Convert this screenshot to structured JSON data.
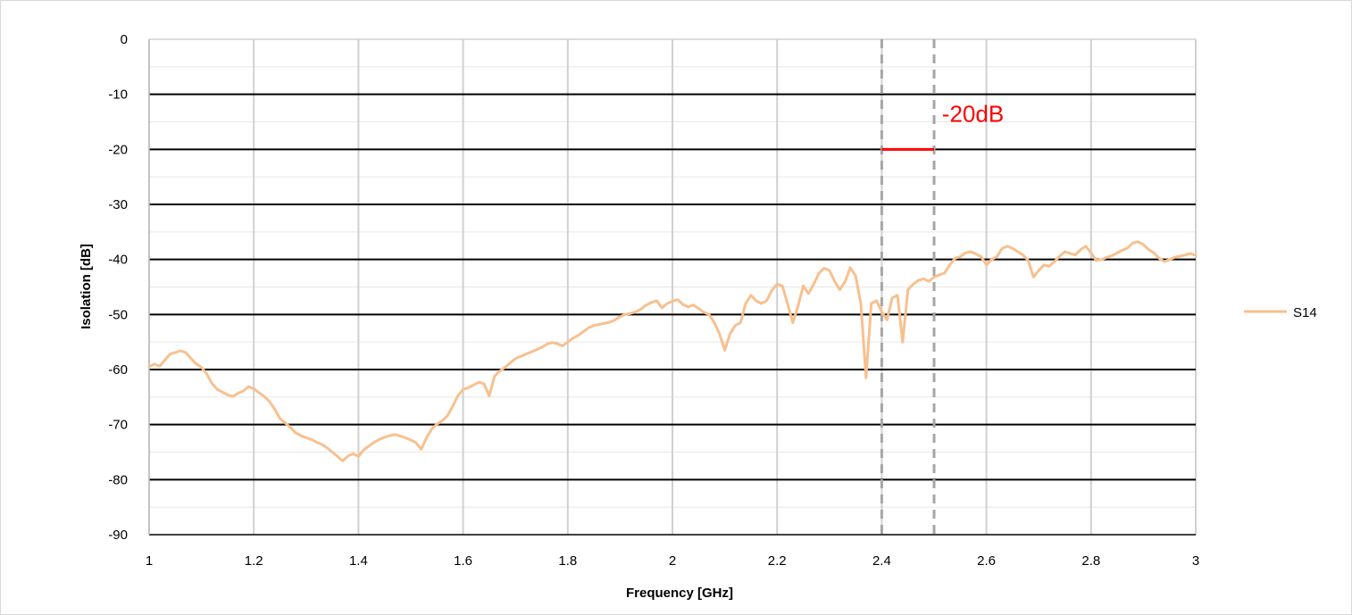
{
  "chart_data": {
    "type": "line",
    "title": "",
    "xlabel": "Frequency [GHz]",
    "ylabel": "Isolation [dB]",
    "xlim": [
      1,
      3
    ],
    "ylim": [
      -90,
      0
    ],
    "x_ticks": [
      1,
      1.2,
      1.4,
      1.6,
      1.8,
      2,
      2.2,
      2.4,
      2.6,
      2.8,
      3
    ],
    "x_tick_labels": [
      "1",
      "1.2",
      "1.4",
      "1.6",
      "1.8",
      "2",
      "2.2",
      "2.4",
      "2.6",
      "2.8",
      "3"
    ],
    "y_ticks": [
      0,
      -10,
      -20,
      -30,
      -40,
      -50,
      -60,
      -70,
      -80,
      -90
    ],
    "y_tick_labels": [
      "0",
      "-10",
      "-20",
      "-30",
      "-40",
      "-50",
      "-60",
      "-70",
      "-80",
      "-90"
    ],
    "grid": true,
    "legend_position": "right",
    "series": [
      {
        "name": "S14",
        "color": "#f8c08f",
        "x": [
          1.0,
          1.01,
          1.02,
          1.03,
          1.04,
          1.05,
          1.06,
          1.07,
          1.08,
          1.09,
          1.1,
          1.11,
          1.12,
          1.13,
          1.14,
          1.15,
          1.16,
          1.17,
          1.18,
          1.19,
          1.2,
          1.21,
          1.22,
          1.23,
          1.24,
          1.25,
          1.26,
          1.27,
          1.28,
          1.29,
          1.3,
          1.31,
          1.32,
          1.33,
          1.34,
          1.35,
          1.36,
          1.37,
          1.38,
          1.39,
          1.4,
          1.41,
          1.42,
          1.43,
          1.44,
          1.45,
          1.46,
          1.47,
          1.48,
          1.49,
          1.5,
          1.51,
          1.52,
          1.53,
          1.54,
          1.55,
          1.56,
          1.57,
          1.58,
          1.59,
          1.6,
          1.61,
          1.62,
          1.63,
          1.64,
          1.65,
          1.66,
          1.67,
          1.68,
          1.69,
          1.7,
          1.71,
          1.72,
          1.73,
          1.74,
          1.75,
          1.76,
          1.77,
          1.78,
          1.79,
          1.8,
          1.81,
          1.82,
          1.83,
          1.84,
          1.85,
          1.86,
          1.87,
          1.88,
          1.89,
          1.9,
          1.91,
          1.92,
          1.93,
          1.94,
          1.95,
          1.96,
          1.97,
          1.98,
          1.99,
          2.0,
          2.01,
          2.02,
          2.03,
          2.04,
          2.05,
          2.06,
          2.07,
          2.08,
          2.09,
          2.1,
          2.11,
          2.12,
          2.13,
          2.14,
          2.15,
          2.16,
          2.17,
          2.18,
          2.19,
          2.2,
          2.21,
          2.22,
          2.23,
          2.24,
          2.25,
          2.26,
          2.27,
          2.28,
          2.29,
          2.3,
          2.31,
          2.32,
          2.33,
          2.34,
          2.35,
          2.36,
          2.37,
          2.38,
          2.39,
          2.4,
          2.41,
          2.42,
          2.43,
          2.44,
          2.45,
          2.46,
          2.47,
          2.48,
          2.49,
          2.5,
          2.51,
          2.52,
          2.53,
          2.54,
          2.55,
          2.56,
          2.57,
          2.58,
          2.59,
          2.6,
          2.61,
          2.62,
          2.63,
          2.64,
          2.65,
          2.66,
          2.67,
          2.68,
          2.69,
          2.7,
          2.71,
          2.72,
          2.73,
          2.74,
          2.75,
          2.76,
          2.77,
          2.78,
          2.79,
          2.8,
          2.81,
          2.82,
          2.83,
          2.84,
          2.85,
          2.86,
          2.87,
          2.88,
          2.89,
          2.9,
          2.91,
          2.92,
          2.93,
          2.94,
          2.95,
          2.96,
          2.97,
          2.98,
          2.99,
          3.0
        ],
        "y": [
          -59.5,
          -59.0,
          -59.4,
          -58.3,
          -57.2,
          -56.9,
          -56.6,
          -56.9,
          -58.0,
          -59.0,
          -59.6,
          -60.8,
          -62.5,
          -63.6,
          -64.1,
          -64.6,
          -64.9,
          -64.3,
          -63.9,
          -63.1,
          -63.5,
          -64.2,
          -64.9,
          -65.8,
          -67.2,
          -68.9,
          -69.7,
          -70.5,
          -71.5,
          -72.0,
          -72.4,
          -72.7,
          -73.2,
          -73.6,
          -74.2,
          -75.0,
          -75.8,
          -76.6,
          -75.7,
          -75.3,
          -75.8,
          -74.6,
          -73.9,
          -73.2,
          -72.7,
          -72.3,
          -72.0,
          -71.8,
          -72.1,
          -72.4,
          -72.8,
          -73.3,
          -74.5,
          -72.4,
          -70.8,
          -69.9,
          -69.3,
          -68.4,
          -66.7,
          -64.8,
          -63.6,
          -63.3,
          -62.8,
          -62.3,
          -62.6,
          -64.8,
          -61.2,
          -60.3,
          -59.6,
          -58.8,
          -58.0,
          -57.6,
          -57.2,
          -56.8,
          -56.4,
          -56.0,
          -55.4,
          -55.1,
          -55.3,
          -55.7,
          -55.0,
          -54.3,
          -53.8,
          -53.1,
          -52.4,
          -52.0,
          -51.8,
          -51.6,
          -51.4,
          -51.0,
          -50.4,
          -50.0,
          -49.8,
          -49.5,
          -49.0,
          -48.3,
          -47.8,
          -47.5,
          -48.8,
          -48.0,
          -47.6,
          -47.3,
          -48.2,
          -48.6,
          -48.3,
          -48.9,
          -49.6,
          -50.0,
          -51.5,
          -53.5,
          -56.5,
          -53.5,
          -52.0,
          -51.5,
          -48.0,
          -46.5,
          -47.5,
          -48.0,
          -47.5,
          -45.6,
          -44.5,
          -44.8,
          -48.0,
          -51.5,
          -48.5,
          -44.8,
          -46.2,
          -44.5,
          -42.5,
          -41.6,
          -42.0,
          -44.0,
          -45.5,
          -44.0,
          -41.5,
          -43.0,
          -48.0,
          -61.5,
          -48.0,
          -47.5,
          -49.5,
          -51.0,
          -47.0,
          -46.5,
          -55.0,
          -45.5,
          -44.5,
          -43.8,
          -43.5,
          -44.0,
          -43.2,
          -42.8,
          -42.5,
          -41.0,
          -39.8,
          -39.5,
          -38.8,
          -38.6,
          -39.0,
          -39.5,
          -41.0,
          -40.0,
          -39.5,
          -38.0,
          -37.6,
          -38.0,
          -38.6,
          -39.2,
          -40.2,
          -43.2,
          -42.0,
          -41.0,
          -41.2,
          -40.4,
          -39.4,
          -38.6,
          -38.9,
          -39.2,
          -38.2,
          -37.6,
          -38.8,
          -40.2,
          -40.0,
          -39.6,
          -39.3,
          -38.8,
          -38.3,
          -37.9,
          -37.0,
          -36.8,
          -37.3,
          -38.2,
          -38.8,
          -39.8,
          -40.4,
          -40.0,
          -39.6,
          -39.4,
          -39.2,
          -38.9,
          -39.3
        ]
      }
    ],
    "annotations": [
      {
        "type": "vline",
        "x": 2.4,
        "color": "#a6a6a6",
        "style": "dashed"
      },
      {
        "type": "vline",
        "x": 2.5,
        "color": "#a6a6a6",
        "style": "dashed"
      },
      {
        "type": "hsegment",
        "x0": 2.4,
        "x1": 2.5,
        "y": -20,
        "color": "#ff0000"
      },
      {
        "type": "text",
        "text": "-20dB",
        "x": 2.515,
        "y": -15,
        "color": "#ff0000"
      }
    ]
  }
}
